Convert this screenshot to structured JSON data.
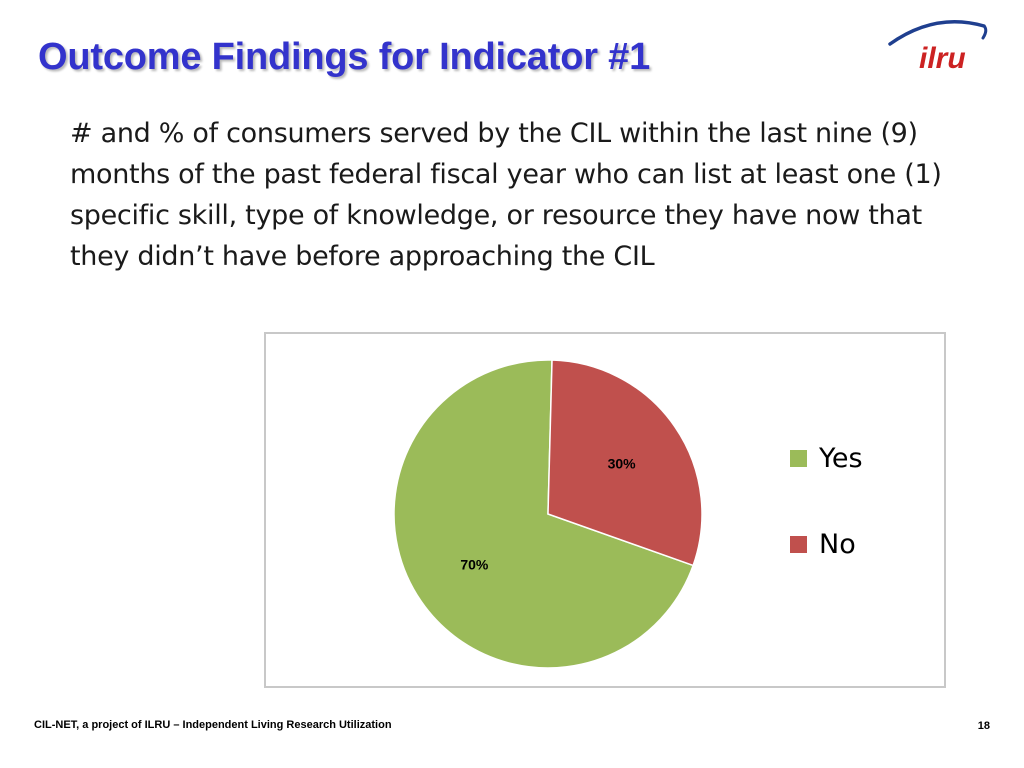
{
  "slide": {
    "title": "Outcome Findings for Indicator #1",
    "body": "# and % of consumers served by the CIL within the last nine (9) months of the past federal fiscal year who can list at least one (1) specific skill, type of knowledge, or resource they have now that they didn’t have before approaching the CIL",
    "footer": "CIL-NET, a project of ILRU – Independent Living Research Utilization",
    "page_number": "18"
  },
  "logo": {
    "text": "ilru",
    "text_color": "#cc2222",
    "swoosh_color": "#1f3f8f"
  },
  "colors": {
    "title": "#3333cc"
  },
  "chart_data": {
    "type": "pie",
    "title": "",
    "categories": [
      "Yes",
      "No"
    ],
    "values": [
      70,
      30
    ],
    "data_labels": [
      "70%",
      "30%"
    ],
    "colors": [
      "#9bbb59",
      "#c0504d"
    ],
    "legend_position": "right"
  }
}
